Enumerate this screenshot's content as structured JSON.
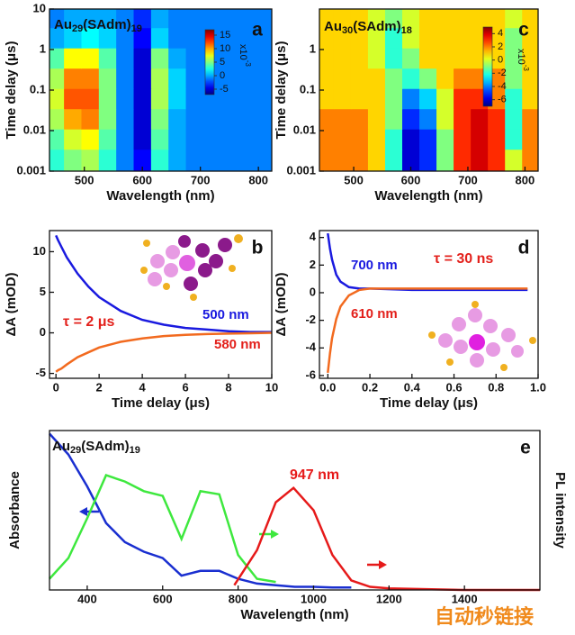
{
  "chart_data": [
    {
      "type": "heatmap",
      "panel_label": "a",
      "title_parts": [
        "Au",
        "29",
        "(SAdm)",
        "19"
      ],
      "x_label": "Wavelength (nm)",
      "y_label": "Time delay (μs)",
      "log_y": true,
      "x": [
        450,
        480,
        510,
        540,
        570,
        600,
        630,
        660,
        690,
        720,
        750,
        780,
        810
      ],
      "y": [
        0.002,
        0.006,
        0.02,
        0.06,
        0.2,
        0.6,
        2,
        6
      ],
      "z": [
        [
          3,
          5,
          6,
          3,
          -1,
          -4,
          3,
          0,
          -1,
          -1,
          -1,
          -1,
          -1
        ],
        [
          4,
          7,
          8,
          4,
          -1,
          -5,
          4,
          0,
          -1,
          -1,
          -1,
          -1,
          -1
        ],
        [
          6,
          10,
          11,
          5,
          -1,
          -5,
          5,
          0,
          -1,
          -1,
          -1,
          -1,
          -1
        ],
        [
          7,
          12,
          12,
          5,
          -1,
          -5,
          6,
          1,
          -1,
          -1,
          -1,
          -1,
          -1
        ],
        [
          6,
          11,
          11,
          5,
          -1,
          -5,
          6,
          1,
          -1,
          -1,
          -1,
          -1,
          -1
        ],
        [
          4,
          8,
          8,
          4,
          -1,
          -5,
          5,
          0,
          -1,
          -1,
          -1,
          -1,
          -1
        ],
        [
          0,
          1,
          2,
          1,
          -1,
          -4,
          1,
          -1,
          -1,
          -1,
          -1,
          -1,
          -1
        ],
        [
          -1,
          0,
          0,
          0,
          -1,
          -3,
          0,
          -1,
          -1,
          -1,
          -1,
          -1,
          -1
        ]
      ],
      "xlim": [
        440,
        823
      ],
      "ylim": [
        0.001,
        10
      ],
      "xticks": [
        500,
        600,
        700,
        800
      ],
      "yticks": [
        0.001,
        0.01,
        0.1,
        1,
        10
      ],
      "zlim": [
        -7,
        17
      ],
      "zticks": [
        -5,
        0,
        5,
        10,
        15
      ],
      "colorbar_label_parts": [
        "x10",
        "-3"
      ]
    },
    {
      "type": "line",
      "panel_label": "b",
      "x_label": "Time delay (μs)",
      "y_label": "ΔA (mOD)",
      "annotations": [
        "τ = 2 μs"
      ],
      "x": [
        0,
        0.1,
        0.25,
        0.5,
        1,
        1.5,
        2,
        3,
        4,
        5,
        6,
        7,
        8,
        9,
        10
      ],
      "series": [
        {
          "name": "500 nm",
          "color": "#1a1adf",
          "label_color": "#1a1adf",
          "values": [
            12,
            11.4,
            10.6,
            9.3,
            7.3,
            5.7,
            4.4,
            2.7,
            1.6,
            1.0,
            0.6,
            0.4,
            0.2,
            0.1,
            0.1
          ]
        },
        {
          "name": "580 nm",
          "color": "#f26a1f",
          "label_color": "#e3201b",
          "values": [
            -4.8,
            -4.6,
            -4.4,
            -3.9,
            -3.0,
            -2.4,
            -1.8,
            -1.1,
            -0.7,
            -0.4,
            -0.25,
            -0.15,
            -0.1,
            -0.05,
            0
          ]
        }
      ],
      "xlim": [
        -0.3,
        10
      ],
      "ylim": [
        -5.6,
        12.6
      ],
      "xticks": [
        0,
        2,
        4,
        6,
        8,
        10
      ],
      "yticks": [
        -5,
        0,
        5,
        10
      ]
    },
    {
      "type": "heatmap",
      "panel_label": "c",
      "title_parts": [
        "Au",
        "30",
        "(SAdm)",
        "18"
      ],
      "x_label": "Wavelength (nm)",
      "y_label": "Time delay (μs)",
      "log_y": true,
      "x": [
        450,
        480,
        510,
        540,
        570,
        600,
        630,
        660,
        690,
        720,
        750,
        780,
        810
      ],
      "y": [
        0.002,
        0.006,
        0.02,
        0.06,
        0.2,
        0.6,
        2,
        6
      ],
      "z": [
        [
          2,
          2,
          2,
          1,
          -2,
          -6,
          -5,
          -1,
          3,
          4,
          3,
          0,
          2
        ],
        [
          2,
          2,
          2,
          1,
          -2,
          -6,
          -5,
          -1,
          3,
          4,
          3,
          -2,
          2
        ],
        [
          2,
          2,
          2,
          1,
          -1,
          -5,
          -4,
          0,
          3,
          4,
          3,
          -2,
          2
        ],
        [
          1,
          1,
          1,
          1,
          -1,
          -4,
          -3,
          0,
          3,
          3,
          2,
          -2,
          1
        ],
        [
          1,
          1,
          1,
          1,
          -1,
          -2,
          -1,
          1,
          2,
          2,
          2,
          -1,
          1
        ],
        [
          1,
          1,
          1,
          0,
          -2,
          -1,
          1,
          1,
          1,
          1,
          1,
          -1,
          1
        ],
        [
          1,
          1,
          1,
          0,
          -2,
          0,
          1,
          1,
          1,
          1,
          1,
          -1,
          1
        ],
        [
          1,
          1,
          1,
          0,
          -1,
          0,
          1,
          1,
          1,
          1,
          1,
          0,
          1
        ]
      ],
      "xlim": [
        440,
        823
      ],
      "ylim": [
        0.001,
        10
      ],
      "xticks": [
        500,
        600,
        700,
        800
      ],
      "yticks": [
        0.001,
        0.01,
        0.1,
        1
      ],
      "zlim": [
        -7,
        5
      ],
      "zticks": [
        -6,
        -4,
        -2,
        0,
        2,
        4
      ],
      "colorbar_label_parts": [
        "x10",
        "-3"
      ]
    },
    {
      "type": "line",
      "panel_label": "d",
      "x_label": "Time delay (μs)",
      "y_label": "ΔA (mOD)",
      "annotations": [
        "τ = 30 ns"
      ],
      "x": [
        0,
        0.01,
        0.02,
        0.04,
        0.06,
        0.1,
        0.15,
        0.2,
        0.4,
        0.6,
        0.8,
        0.95
      ],
      "series": [
        {
          "name": "700 nm",
          "color": "#1a1adf",
          "label_color": "#1a1adf",
          "values": [
            4.3,
            3.2,
            2.4,
            1.3,
            0.8,
            0.4,
            0.3,
            0.3,
            0.2,
            0.2,
            0.2,
            0.2
          ]
        },
        {
          "name": "610 nm",
          "color": "#f26a1f",
          "label_color": "#e3201b",
          "values": [
            -5.8,
            -4.4,
            -3.3,
            -1.9,
            -1.0,
            -0.2,
            0.2,
            0.3,
            0.3,
            0.3,
            0.3,
            0.3
          ]
        }
      ],
      "xlim": [
        -0.04,
        1.0
      ],
      "ylim": [
        -6.2,
        4.5
      ],
      "xticks": [
        {
          "value": 0,
          "label": "0.0"
        },
        0.2,
        0.4,
        0.6,
        0.8,
        {
          "value": 1,
          "label": "1.0"
        }
      ],
      "yticks": [
        -6,
        -4,
        -2,
        0,
        2,
        4
      ]
    },
    {
      "type": "line",
      "panel_label": "e",
      "title_parts": [
        "Au",
        "29",
        "(SAdm)",
        "19"
      ],
      "x_label": "Wavelength (nm)",
      "y_label": "Absorbance",
      "y2_label": "PL intensity",
      "annotations": [
        "947 nm"
      ],
      "series": [
        {
          "color": "#1a2fd0",
          "x": [
            300,
            350,
            400,
            450,
            500,
            550,
            600,
            650,
            700,
            750,
            800,
            850,
            900,
            950,
            1000,
            1050,
            1100
          ],
          "values": [
            0.98,
            0.85,
            0.65,
            0.42,
            0.3,
            0.24,
            0.2,
            0.09,
            0.12,
            0.12,
            0.07,
            0.04,
            0.03,
            0.02,
            0.02,
            0.015,
            0.015
          ]
        },
        {
          "color": "#3ee83e",
          "x": [
            300,
            350,
            400,
            450,
            500,
            550,
            600,
            650,
            700,
            750,
            800,
            850,
            900
          ],
          "values": [
            0.07,
            0.2,
            0.45,
            0.72,
            0.68,
            0.62,
            0.59,
            0.32,
            0.62,
            0.6,
            0.22,
            0.07,
            0.05
          ]
        },
        {
          "color": "#e61a1a",
          "x": [
            790,
            850,
            900,
            947,
            1000,
            1050,
            1100,
            1150,
            1200,
            1400,
            1600
          ],
          "values": [
            0.03,
            0.25,
            0.55,
            0.64,
            0.5,
            0.22,
            0.06,
            0.02,
            0.01,
            0,
            0
          ]
        }
      ],
      "xlim": [
        300,
        1600
      ],
      "ylim": [
        0,
        1
      ],
      "xticks": [
        400,
        600,
        800,
        1000,
        1200,
        1400
      ]
    }
  ],
  "watermark": "自动秒链接"
}
